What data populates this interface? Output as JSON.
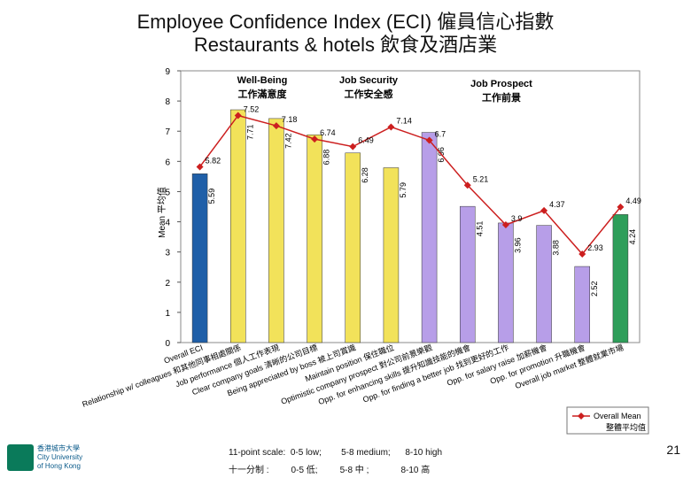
{
  "header": {
    "title_line1": "Employee Confidence Index (ECI) 僱員信心指數",
    "title_line2": "Restaurants & hotels 飲食及酒店業"
  },
  "chart_data": {
    "type": "bar",
    "ylabel": "Mean 平均值",
    "ylim": [
      0,
      9
    ],
    "yticks": [
      0,
      1,
      2,
      3,
      4,
      5,
      6,
      7,
      8,
      9
    ],
    "groups": [
      {
        "label_en": "Well-Being",
        "label_zh": "工作滿意度"
      },
      {
        "label_en": "Job Security",
        "label_zh": "工作安全感"
      },
      {
        "label_en": "Job Prospect",
        "label_zh": "工作前景"
      }
    ],
    "categories": [
      "Overall ECI",
      "Relationship w/ colleagues 和其他同事相處關係",
      "Job performance 個人工作表現",
      "Clear company goals 清晰的公司目標",
      "Being appreciated by boss 被上司賞識",
      "Maintain position 保住職位",
      "Optimistic company prospect 對公司前景樂觀",
      "Opp. for enhancing skills 提升知識技能的機會",
      "Opp. for finding a better job 找到更好的工作",
      "Opp. for salary raise 加薪機會",
      "Opp. for promotion 升職機會",
      "Overall job market 整體就業市場"
    ],
    "values": [
      5.59,
      7.71,
      7.42,
      6.88,
      6.28,
      5.79,
      6.96,
      4.51,
      3.96,
      3.88,
      2.52,
      4.24
    ],
    "value_labels": [
      "5.59",
      "7.71",
      "7.42",
      "6.88",
      "6.28",
      "5.79",
      "6.96",
      "4.51",
      "3.96",
      "3.88",
      "2.52",
      "4.24"
    ],
    "bar_colors": [
      "#1f5fa8",
      "#f2e25a",
      "#f2e25a",
      "#f2e25a",
      "#f2e25a",
      "#f2e25a",
      "#b79ee8",
      "#b79ee8",
      "#b79ee8",
      "#b79ee8",
      "#b79ee8",
      "#2e9e5a"
    ],
    "series": [
      {
        "name": "Overall Mean",
        "values": [
          5.82,
          7.52,
          7.18,
          6.74,
          6.49,
          7.14,
          6.7,
          5.21,
          3.9,
          4.37,
          2.93,
          4.49
        ]
      }
    ],
    "line_color": "#cc1f1f",
    "legend": {
      "position": "bottom-right",
      "entries": [
        "Overall Mean",
        "整體平均值"
      ]
    }
  },
  "footer": {
    "scale_en": "11-point scale:  0-5 low;        5-8 medium;      8-10 high",
    "scale_zh": "十一分制 :         0-5 低;         5-8 中 ;             8-10 高",
    "page_number": "21",
    "logo_text": "香港城市大學\nCity University\nof Hong Kong"
  }
}
